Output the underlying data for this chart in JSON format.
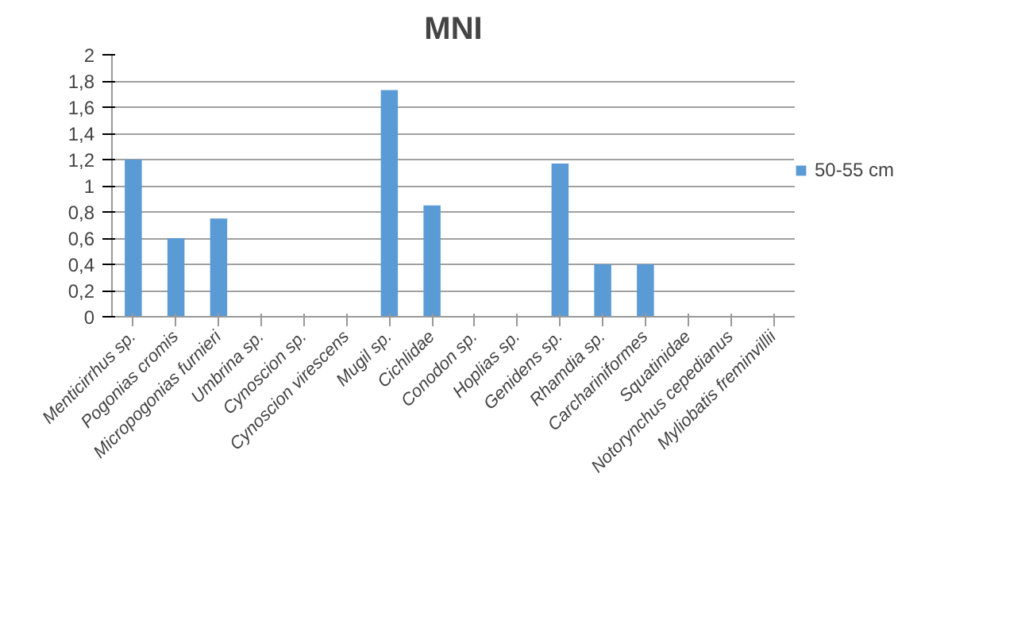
{
  "chart_data": {
    "type": "bar",
    "title": "MNI",
    "categories": [
      "Menticirrhus sp.",
      "Pogonias cromis",
      "Micropogonias furnieri",
      "Umbrina sp.",
      "Cynoscion sp.",
      "Cynoscion virescens",
      "Mugil sp.",
      "Cichlidae",
      "Conodon sp.",
      "Hoplias sp.",
      "Genidens sp.",
      "Rhamdia sp.",
      "Carchariniformes",
      "Squatinidae",
      "Notorynchus cepedianus",
      "Myliobatis freminvillii"
    ],
    "series": [
      {
        "name": "50-55 cm",
        "color": "#5b9bd5",
        "values": [
          1.2,
          0.6,
          0.75,
          0,
          0,
          0,
          1.73,
          0.85,
          0,
          0,
          1.17,
          0.4,
          0.4,
          0,
          0,
          0
        ]
      }
    ],
    "ylim": [
      0,
      2
    ],
    "yticks": [
      0,
      {
        "value": 0.2,
        "label": "0,2"
      },
      {
        "value": 0.4,
        "label": "0,4"
      },
      {
        "value": 0.6,
        "label": "0,6"
      },
      {
        "value": 0.8,
        "label": "0,8"
      },
      1,
      {
        "value": 1.2,
        "label": "1,2"
      },
      {
        "value": 1.4,
        "label": "1,4"
      },
      {
        "value": 1.6,
        "label": "1,6"
      },
      {
        "value": 1.8,
        "label": "1,8"
      },
      2
    ],
    "grid": "y",
    "legend": "right"
  }
}
